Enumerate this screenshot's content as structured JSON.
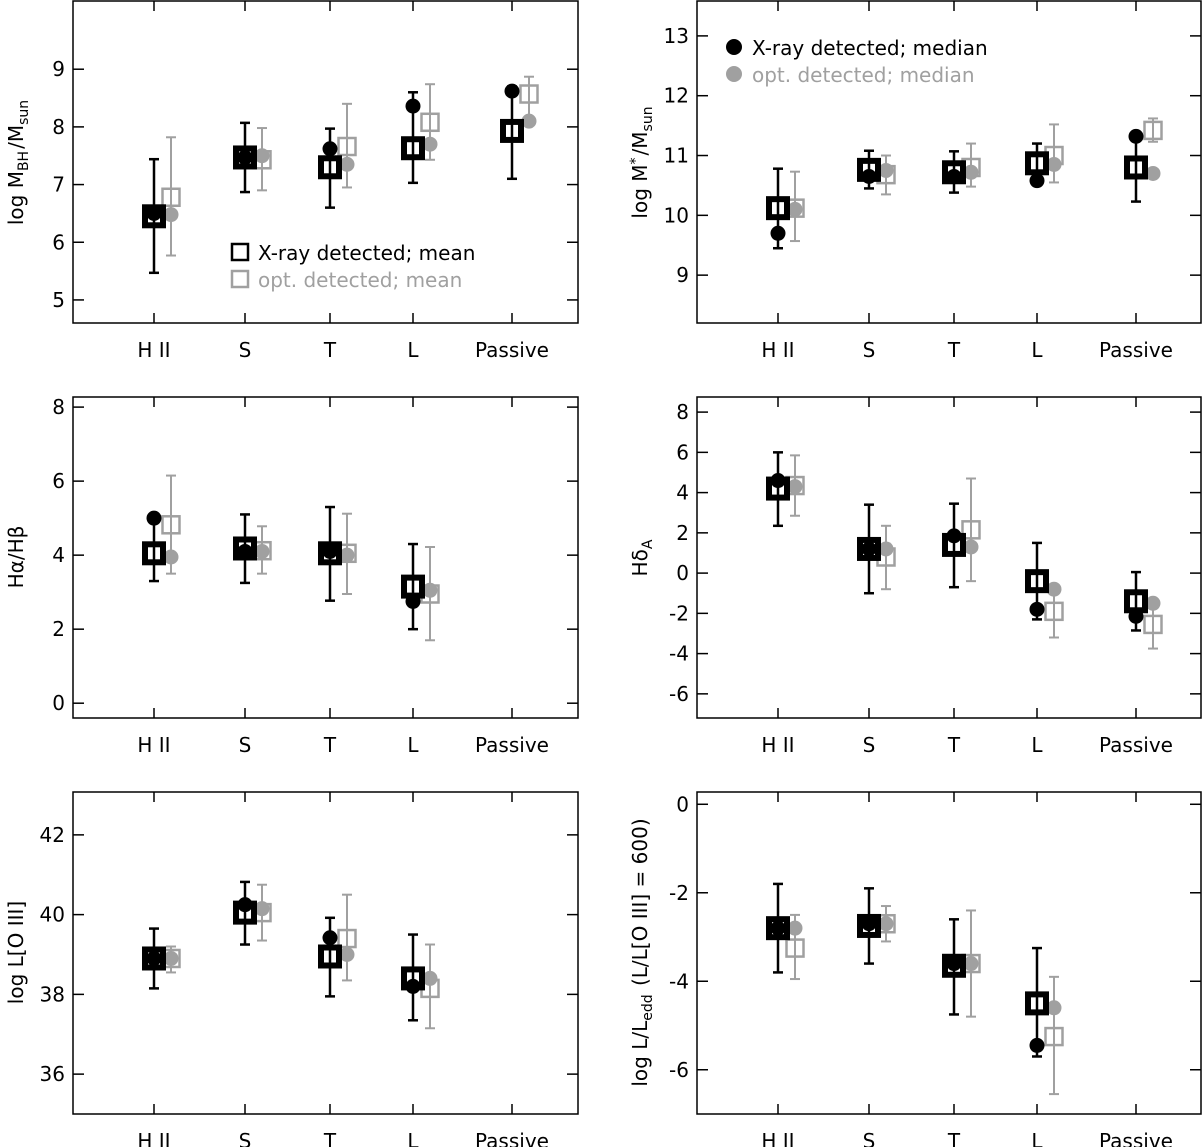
{
  "colors": {
    "xray": "#000000",
    "opt": "#a0a0a0",
    "axis": "#000000"
  },
  "categories": [
    "H II",
    "S",
    "T",
    "L",
    "Passive"
  ],
  "chart_data": [
    {
      "id": "mbh",
      "type": "scatter",
      "ylabel": "log M",
      "ylabel_sub": "BH",
      "ylabel_tail": "/M",
      "ylabel_tail_sub": "sun",
      "ylim": [
        4.6,
        10.2
      ],
      "yticks": [
        5,
        6,
        7,
        8,
        9
      ],
      "legend": {
        "placement": "lower-center",
        "entries": [
          "X-ray detected; mean",
          "opt. detected; mean"
        ]
      },
      "series": [
        {
          "name": "X-ray detected; mean",
          "marker": "square",
          "values": [
            6.45,
            7.47,
            7.3,
            7.63,
            7.93
          ],
          "err_low": [
            5.47,
            6.87,
            6.6,
            7.03,
            7.1
          ],
          "err_high": [
            7.44,
            8.07,
            7.97,
            8.6,
            8.7
          ]
        },
        {
          "name": "opt. detected; mean",
          "marker": "square",
          "values": [
            6.78,
            7.43,
            7.66,
            8.08,
            8.57
          ],
          "err_low": [
            5.77,
            6.9,
            6.95,
            7.43,
            8.17
          ],
          "err_high": [
            7.82,
            7.98,
            8.4,
            8.74,
            8.87
          ]
        },
        {
          "name": "X-ray detected; median",
          "marker": "circle",
          "values": [
            6.5,
            7.47,
            7.62,
            8.36,
            8.62
          ]
        },
        {
          "name": "opt. detected; median",
          "marker": "circle",
          "values": [
            6.48,
            7.5,
            7.35,
            7.7,
            8.1
          ]
        }
      ]
    },
    {
      "id": "mstar",
      "type": "scatter",
      "ylabel": "log M",
      "ylabel_sup": "*",
      "ylabel_tail": "/M",
      "ylabel_tail_sub": "sun",
      "ylim": [
        8.2,
        13.6
      ],
      "yticks": [
        9,
        10,
        11,
        12,
        13
      ],
      "legend": {
        "placement": "top-left",
        "entries": [
          "X-ray detected; median",
          "opt. detected; median"
        ]
      },
      "series": [
        {
          "name": "X-ray detected; mean",
          "marker": "square",
          "values": [
            10.12,
            10.76,
            10.72,
            10.87,
            10.8
          ],
          "err_low": [
            9.45,
            10.45,
            10.38,
            10.55,
            10.23
          ],
          "err_high": [
            10.78,
            11.08,
            11.07,
            11.2,
            11.35
          ]
        },
        {
          "name": "opt. detected; mean",
          "marker": "square",
          "values": [
            10.12,
            10.68,
            10.8,
            11.0,
            11.42
          ],
          "err_low": [
            9.57,
            10.35,
            10.48,
            10.55,
            11.23
          ],
          "err_high": [
            10.73,
            11.0,
            11.2,
            11.52,
            11.62
          ]
        },
        {
          "name": "X-ray detected; median",
          "marker": "circle",
          "values": [
            9.7,
            10.65,
            10.65,
            10.58,
            11.32
          ]
        },
        {
          "name": "opt. detected; median",
          "marker": "circle",
          "values": [
            10.1,
            10.75,
            10.72,
            10.85,
            10.7
          ]
        }
      ]
    },
    {
      "id": "balmer",
      "type": "scatter",
      "ylabel": "Hα/Hβ",
      "ylim": [
        -0.4,
        8.3
      ],
      "yticks": [
        0,
        2,
        4,
        6,
        8
      ],
      "series": [
        {
          "name": "X-ray detected; mean",
          "marker": "square",
          "values": [
            4.05,
            4.18,
            4.05,
            3.15
          ],
          "err_low": [
            3.3,
            3.25,
            2.77,
            2.0
          ],
          "err_high": [
            5.0,
            5.1,
            5.3,
            4.3
          ]
        },
        {
          "name": "opt. detected; mean",
          "marker": "square",
          "values": [
            4.82,
            4.12,
            4.05,
            2.95
          ],
          "err_low": [
            3.5,
            3.5,
            2.95,
            1.7
          ],
          "err_high": [
            6.15,
            4.78,
            5.12,
            4.22
          ]
        },
        {
          "name": "X-ray detected; median",
          "marker": "circle",
          "values": [
            5.0,
            4.1,
            4.1,
            2.75
          ]
        },
        {
          "name": "opt. detected; median",
          "marker": "circle",
          "values": [
            3.95,
            4.1,
            4.0,
            3.05
          ]
        }
      ]
    },
    {
      "id": "hdelta",
      "type": "scatter",
      "ylabel": "Hδ",
      "ylabel_sub": "A",
      "ylim": [
        -7.2,
        8.8
      ],
      "yticks": [
        -6,
        -4,
        -2,
        0,
        2,
        4,
        6,
        8
      ],
      "series": [
        {
          "name": "X-ray detected; mean",
          "marker": "square",
          "values": [
            4.2,
            1.2,
            1.4,
            -0.4,
            -1.4
          ],
          "err_low": [
            2.35,
            -1.0,
            -0.7,
            -2.3,
            -2.85
          ],
          "err_high": [
            6.0,
            3.4,
            3.45,
            1.5,
            0.05
          ]
        },
        {
          "name": "opt. detected; mean",
          "marker": "square",
          "values": [
            4.35,
            0.8,
            2.15,
            -1.9,
            -2.55
          ],
          "err_low": [
            2.85,
            -0.8,
            -0.4,
            -3.2,
            -3.75
          ],
          "err_high": [
            5.85,
            2.35,
            4.7,
            -0.6,
            -1.35
          ]
        },
        {
          "name": "X-ray detected; median",
          "marker": "circle",
          "values": [
            4.6,
            1.2,
            1.85,
            -1.8,
            -2.15
          ]
        },
        {
          "name": "opt. detected; median",
          "marker": "circle",
          "values": [
            4.3,
            1.2,
            1.3,
            -0.8,
            -1.5
          ]
        }
      ]
    },
    {
      "id": "loiii",
      "type": "scatter",
      "ylabel": "log L[O III]",
      "ylim": [
        35.0,
        43.1
      ],
      "yticks": [
        36,
        38,
        40,
        42
      ],
      "series": [
        {
          "name": "X-ray detected; mean",
          "marker": "square",
          "values": [
            38.9,
            40.05,
            38.95,
            38.4
          ],
          "err_low": [
            38.15,
            39.25,
            37.95,
            37.35
          ],
          "err_high": [
            39.65,
            40.82,
            39.92,
            39.5
          ]
        },
        {
          "name": "opt. detected; mean",
          "marker": "square",
          "values": [
            38.9,
            40.05,
            39.4,
            38.15
          ],
          "err_low": [
            38.55,
            39.35,
            38.35,
            37.15
          ],
          "err_high": [
            39.2,
            40.75,
            40.5,
            39.25
          ]
        },
        {
          "name": "X-ray detected; median",
          "marker": "circle",
          "values": [
            38.9,
            40.25,
            39.42,
            38.2
          ]
        },
        {
          "name": "opt. detected; median",
          "marker": "circle",
          "values": [
            38.9,
            40.15,
            39.0,
            38.4
          ]
        }
      ]
    },
    {
      "id": "ledd",
      "type": "scatter",
      "ylabel": "log L/L",
      "ylabel_sub": "edd",
      "ylabel_tail": "  (L/L[O III] = 600)",
      "ylim": [
        -7.0,
        0.3
      ],
      "yticks": [
        -6,
        -4,
        -2,
        0
      ],
      "series": [
        {
          "name": "X-ray detected; mean",
          "marker": "square",
          "values": [
            -2.8,
            -2.75,
            -3.65,
            -4.5
          ],
          "err_low": [
            -3.8,
            -3.6,
            -4.75,
            -5.7
          ],
          "err_high": [
            -1.8,
            -1.9,
            -2.6,
            -3.25
          ]
        },
        {
          "name": "opt. detected; mean",
          "marker": "square",
          "values": [
            -3.25,
            -2.7,
            -3.6,
            -5.25
          ],
          "err_low": [
            -3.95,
            -3.1,
            -4.8,
            -6.55
          ],
          "err_high": [
            -2.5,
            -2.3,
            -2.4,
            -3.9
          ]
        },
        {
          "name": "X-ray detected; median",
          "marker": "circle",
          "values": [
            -2.8,
            -2.7,
            -3.6,
            -5.45
          ]
        },
        {
          "name": "opt. detected; median",
          "marker": "circle",
          "values": [
            -2.8,
            -2.7,
            -3.6,
            -4.6
          ]
        }
      ]
    }
  ]
}
